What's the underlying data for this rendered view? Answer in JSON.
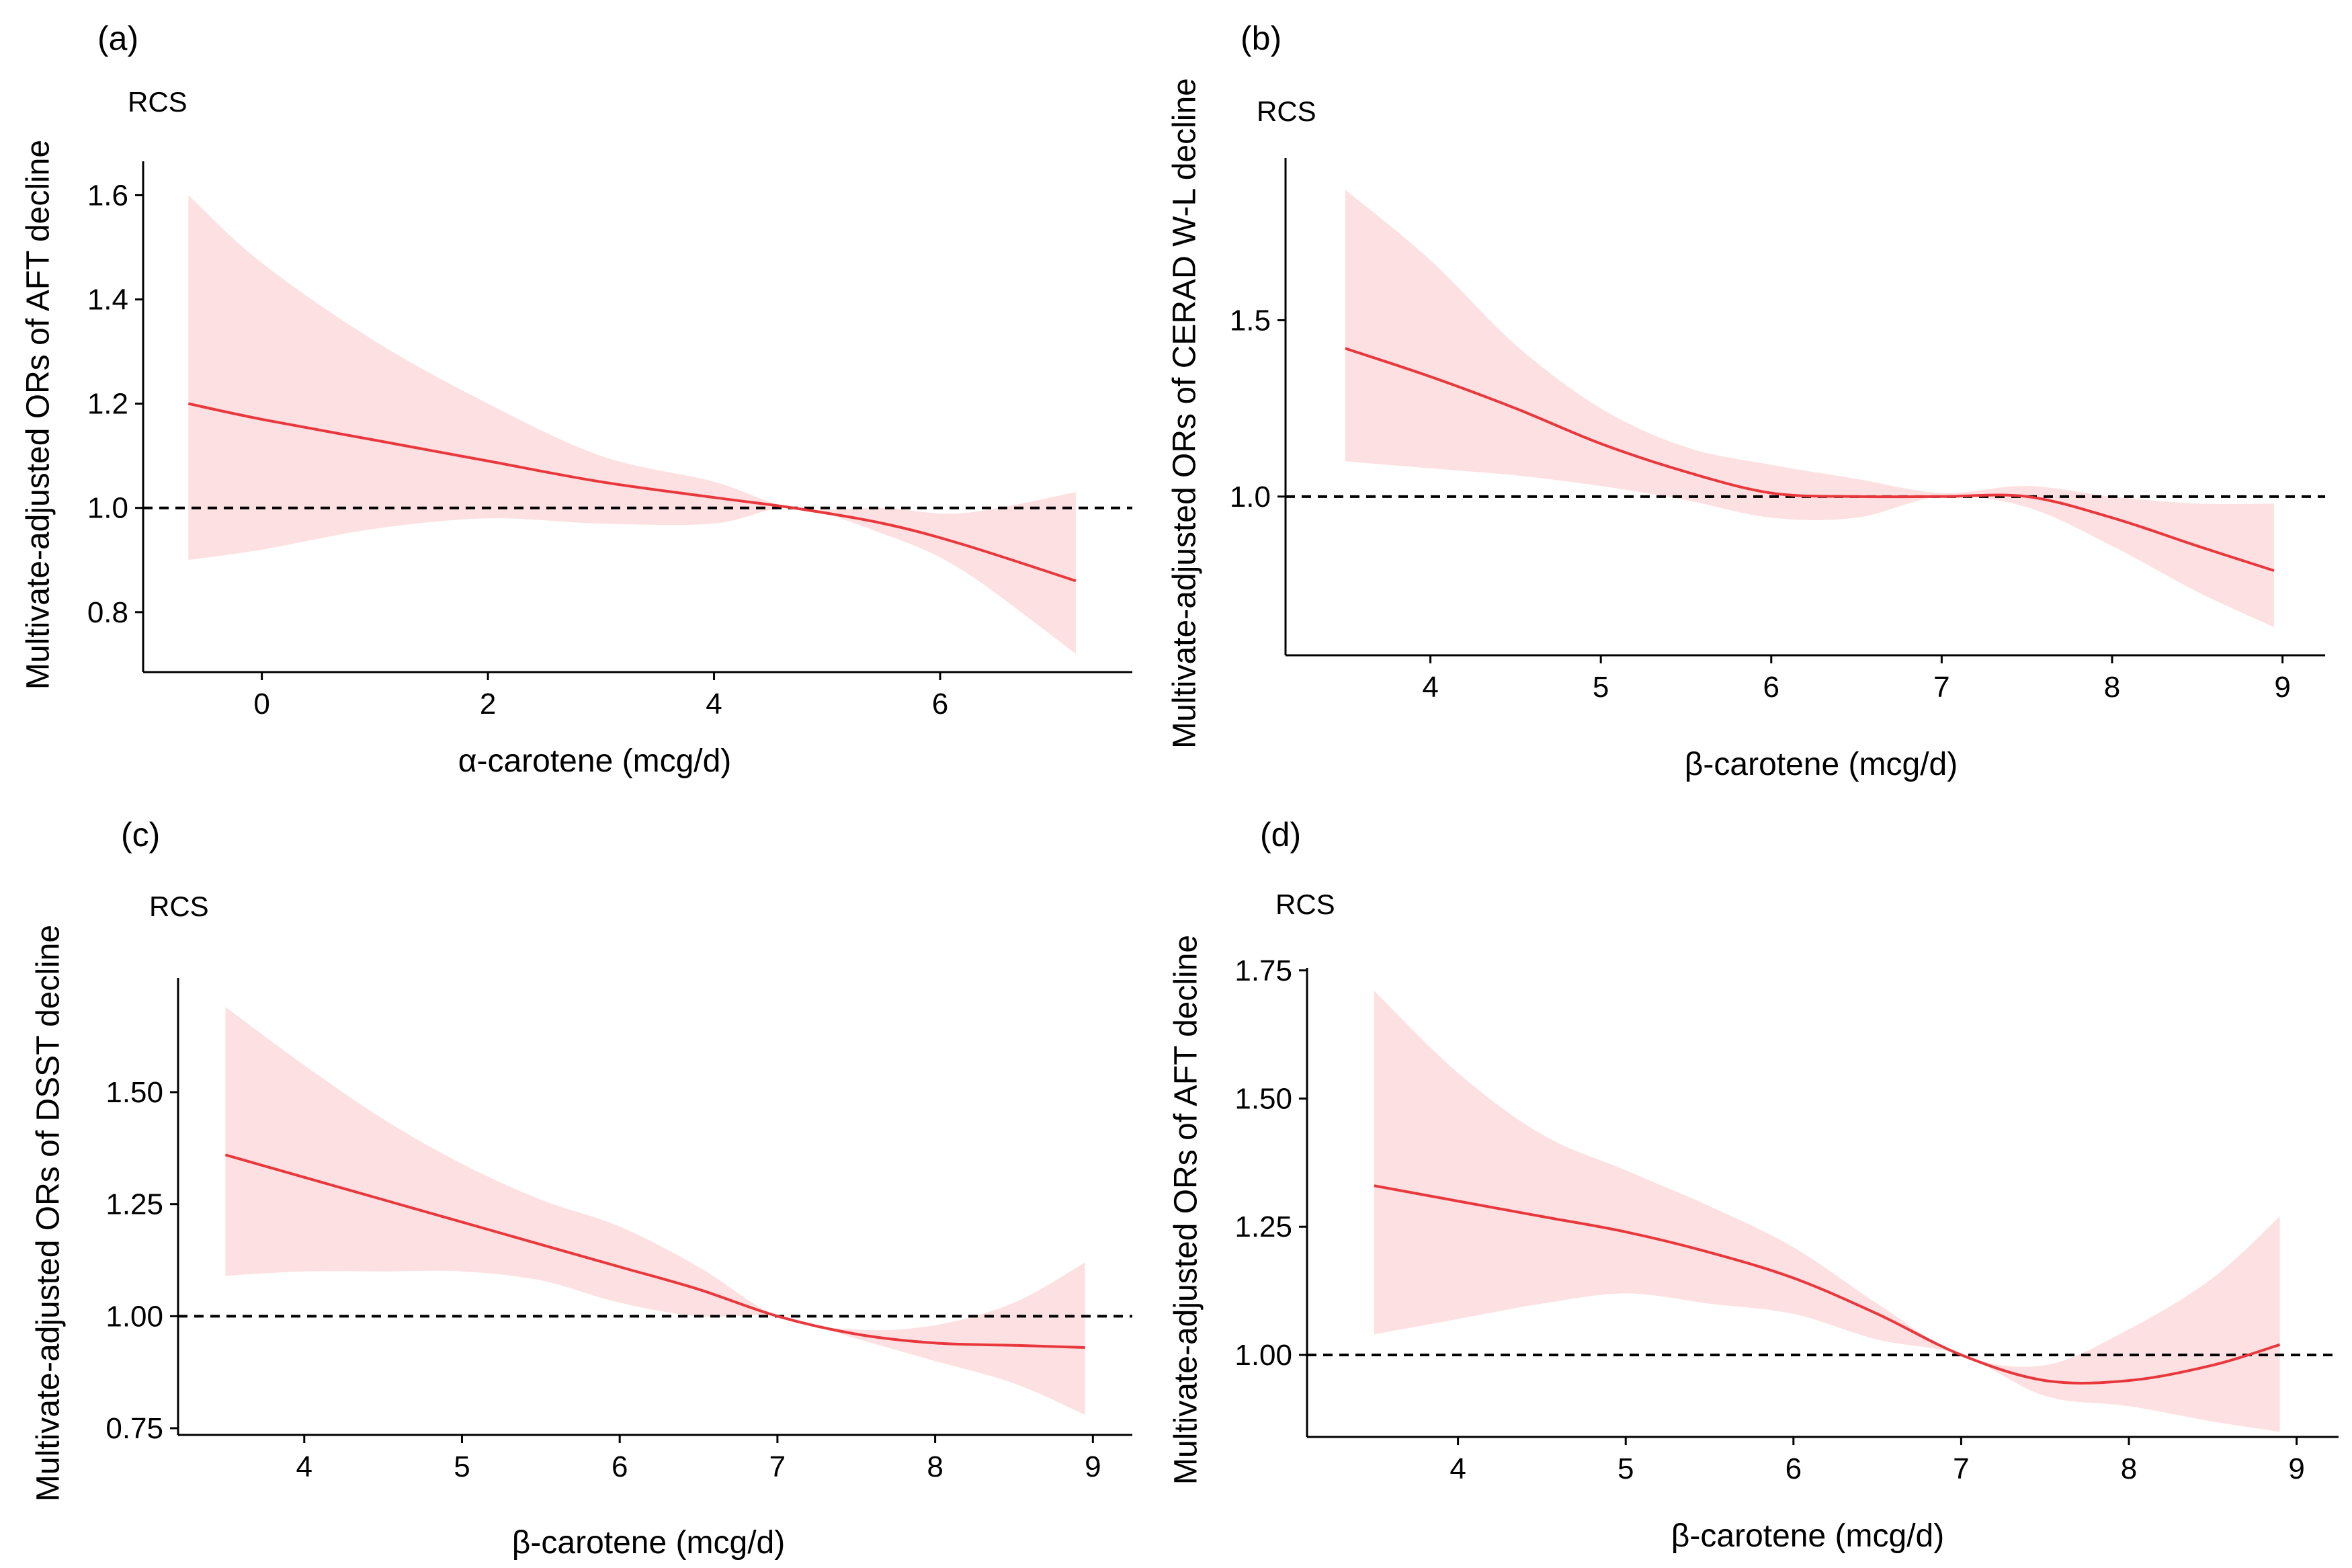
{
  "chart_data": [
    {
      "type": "line",
      "panel_label": "(a)",
      "corner_label": "RCS",
      "xlabel": "α-carotene (mcg/d)",
      "ylabel": "Multivate-adjusted ORs of AFT decline",
      "xlim": [
        -1.05,
        7.7
      ],
      "ylim": [
        0.685,
        1.665
      ],
      "xticks": [
        0,
        2,
        4,
        6
      ],
      "xtick_labels": [
        "0",
        "2",
        "4",
        "6"
      ],
      "yticks": [
        0.8,
        1.0,
        1.2,
        1.4,
        1.6
      ],
      "ytick_labels": [
        "0.8",
        "1.0",
        "1.2",
        "1.4",
        "1.6"
      ],
      "reference_line": 1.0,
      "line_color": "#e8383d",
      "band_color": "#fde0e1",
      "series": [
        {
          "name": "OR",
          "x": [
            -0.65,
            0,
            1,
            2,
            3,
            4,
            4.7,
            5.5,
            6.2,
            7.2
          ],
          "values": [
            1.2,
            1.17,
            1.13,
            1.09,
            1.05,
            1.02,
            1.0,
            0.97,
            0.93,
            0.86
          ]
        },
        {
          "name": "upper",
          "x": [
            -0.65,
            0,
            1,
            2,
            3,
            4,
            4.7,
            5.5,
            6.2,
            7.2
          ],
          "values": [
            1.6,
            1.47,
            1.32,
            1.2,
            1.1,
            1.05,
            1.0,
            1.0,
            0.99,
            1.03
          ]
        },
        {
          "name": "lower",
          "x": [
            -0.65,
            0,
            1,
            2,
            3,
            4,
            4.7,
            5.5,
            6.2,
            7.2
          ],
          "values": [
            0.9,
            0.92,
            0.96,
            0.98,
            0.97,
            0.97,
            1.0,
            0.95,
            0.88,
            0.72
          ]
        }
      ]
    },
    {
      "type": "line",
      "panel_label": "(b)",
      "corner_label": "RCS",
      "xlabel": "β-carotene (mcg/d)",
      "ylabel": "Multivate-adjusted ORs of CERAD W-L decline",
      "xlim": [
        3.15,
        9.25
      ],
      "ylim": [
        0.55,
        1.96
      ],
      "xticks": [
        4,
        5,
        6,
        7,
        8,
        9
      ],
      "xtick_labels": [
        "4",
        "5",
        "6",
        "7",
        "8",
        "9"
      ],
      "yticks": [
        1.0,
        1.5
      ],
      "ytick_labels": [
        "1.0",
        "1.5"
      ],
      "reference_line": 1.0,
      "line_color": "#e8383d",
      "band_color": "#fde0e1",
      "series": [
        {
          "name": "OR",
          "x": [
            3.5,
            4,
            4.5,
            5,
            5.5,
            6,
            6.5,
            7,
            7.5,
            8,
            8.5,
            8.95
          ],
          "values": [
            1.42,
            1.34,
            1.25,
            1.15,
            1.07,
            1.01,
            1.0,
            1.0,
            1.0,
            0.94,
            0.86,
            0.79
          ]
        },
        {
          "name": "upper",
          "x": [
            3.5,
            4,
            4.5,
            5,
            5.5,
            6,
            6.5,
            7,
            7.5,
            8,
            8.5,
            8.95
          ],
          "values": [
            1.87,
            1.67,
            1.43,
            1.25,
            1.14,
            1.09,
            1.05,
            1.01,
            1.03,
            1.0,
            0.98,
            0.98
          ]
        },
        {
          "name": "lower",
          "x": [
            3.5,
            4,
            4.5,
            5,
            5.5,
            6,
            6.5,
            7,
            7.5,
            8,
            8.5,
            8.95
          ],
          "values": [
            1.1,
            1.08,
            1.06,
            1.03,
            0.99,
            0.94,
            0.94,
            1.0,
            0.97,
            0.86,
            0.73,
            0.63
          ]
        }
      ]
    },
    {
      "type": "line",
      "panel_label": "(c)",
      "corner_label": "RCS",
      "xlabel": "β-carotene (mcg/d)",
      "ylabel": "Multivate-adjusted ORs of DSST decline",
      "xlim": [
        3.2,
        9.25
      ],
      "ylim": [
        0.735,
        1.755
      ],
      "xticks": [
        4,
        5,
        6,
        7,
        8,
        9
      ],
      "xtick_labels": [
        "4",
        "5",
        "6",
        "7",
        "8",
        "9"
      ],
      "yticks": [
        0.75,
        1.0,
        1.25,
        1.5
      ],
      "ytick_labels": [
        "0.75",
        "1.00",
        "1.25",
        "1.50"
      ],
      "reference_line": 1.0,
      "line_color": "#e8383d",
      "band_color": "#fde0e1",
      "series": [
        {
          "name": "OR",
          "x": [
            3.5,
            4,
            4.5,
            5,
            5.5,
            6,
            6.5,
            7,
            7.5,
            8,
            8.5,
            8.95
          ],
          "values": [
            1.36,
            1.31,
            1.26,
            1.21,
            1.16,
            1.11,
            1.06,
            1.0,
            0.96,
            0.94,
            0.935,
            0.93
          ]
        },
        {
          "name": "upper",
          "x": [
            3.5,
            4,
            4.5,
            5,
            5.5,
            6,
            6.5,
            7,
            7.5,
            8,
            8.5,
            8.95
          ],
          "values": [
            1.69,
            1.56,
            1.44,
            1.34,
            1.26,
            1.2,
            1.11,
            1.0,
            0.97,
            0.98,
            1.03,
            1.12
          ]
        },
        {
          "name": "lower",
          "x": [
            3.5,
            4,
            4.5,
            5,
            5.5,
            6,
            6.5,
            7,
            7.5,
            8,
            8.5,
            8.95
          ],
          "values": [
            1.09,
            1.1,
            1.1,
            1.1,
            1.08,
            1.03,
            1.0,
            1.0,
            0.95,
            0.9,
            0.85,
            0.78
          ]
        }
      ]
    },
    {
      "type": "line",
      "panel_label": "(d)",
      "corner_label": "RCS",
      "xlabel": "β-carotene (mcg/d)",
      "ylabel": "Multivate-adjusted ORs of AFT decline",
      "xlim": [
        3.1,
        9.25
      ],
      "ylim": [
        0.84,
        1.755
      ],
      "xticks": [
        4,
        5,
        6,
        7,
        8,
        9
      ],
      "xtick_labels": [
        "4",
        "5",
        "6",
        "7",
        "8",
        "9"
      ],
      "yticks": [
        1.0,
        1.25,
        1.5,
        1.75
      ],
      "ytick_labels": [
        "1.00",
        "1.25",
        "1.50",
        "1.75"
      ],
      "reference_line": 1.0,
      "line_color": "#e8383d",
      "band_color": "#fde0e1",
      "series": [
        {
          "name": "OR",
          "x": [
            3.5,
            4,
            4.5,
            5,
            5.5,
            6,
            6.5,
            7,
            7.5,
            8,
            8.5,
            8.9
          ],
          "values": [
            1.33,
            1.3,
            1.27,
            1.24,
            1.2,
            1.15,
            1.08,
            1.0,
            0.95,
            0.95,
            0.98,
            1.02
          ]
        },
        {
          "name": "upper",
          "x": [
            3.5,
            4,
            4.5,
            5,
            5.5,
            6,
            6.5,
            7,
            7.5,
            8,
            8.5,
            8.9
          ],
          "values": [
            1.71,
            1.55,
            1.43,
            1.36,
            1.29,
            1.21,
            1.1,
            1.0,
            0.98,
            1.05,
            1.15,
            1.27
          ]
        },
        {
          "name": "lower",
          "x": [
            3.5,
            4,
            4.5,
            5,
            5.5,
            6,
            6.5,
            7,
            7.5,
            8,
            8.5,
            8.9
          ],
          "values": [
            1.04,
            1.07,
            1.1,
            1.12,
            1.1,
            1.08,
            1.03,
            1.0,
            0.92,
            0.9,
            0.87,
            0.85
          ]
        }
      ]
    }
  ]
}
